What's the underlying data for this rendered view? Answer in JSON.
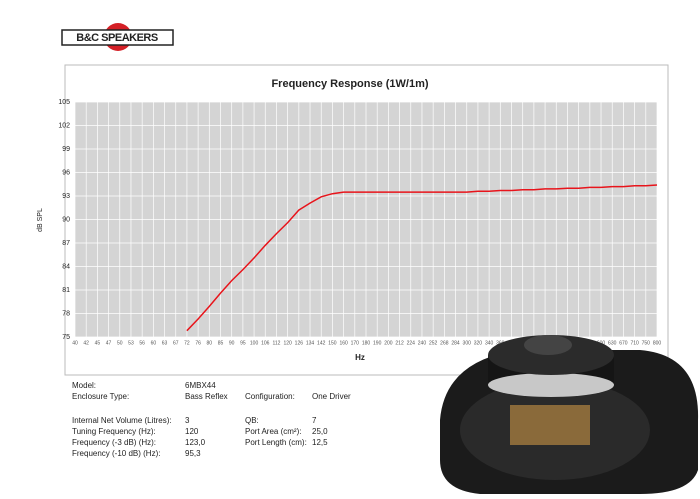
{
  "logo": "B&C SPEAKERS",
  "chart_data": {
    "type": "line",
    "title": "Frequency Response (1W/1m)",
    "x_label": "Hz",
    "y_label": "dB SPL",
    "categories": [
      "40",
      "42",
      "45",
      "47",
      "50",
      "53",
      "56",
      "60",
      "63",
      "67",
      "72",
      "76",
      "80",
      "85",
      "90",
      "95",
      "100",
      "106",
      "112",
      "120",
      "126",
      "134",
      "142",
      "150",
      "160",
      "170",
      "180",
      "190",
      "200",
      "212",
      "224",
      "240",
      "252",
      "268",
      "284",
      "300",
      "320",
      "340",
      "360",
      "380",
      "400",
      "425",
      "450",
      "475",
      "500",
      "530",
      "560",
      "600",
      "630",
      "670",
      "710",
      "750",
      "800"
    ],
    "values": [
      null,
      null,
      null,
      null,
      null,
      null,
      null,
      null,
      null,
      null,
      75.8,
      77.3,
      78.9,
      80.6,
      82.2,
      83.6,
      85.1,
      86.7,
      88.2,
      89.6,
      91.2,
      92.1,
      92.9,
      93.3,
      93.5,
      93.5,
      93.5,
      93.5,
      93.5,
      93.5,
      93.5,
      93.5,
      93.5,
      93.5,
      93.5,
      93.5,
      93.6,
      93.6,
      93.7,
      93.7,
      93.8,
      93.8,
      93.9,
      93.9,
      94.0,
      94.0,
      94.1,
      94.1,
      94.2,
      94.2,
      94.3,
      94.3,
      94.4
    ],
    "color": "#e8141b",
    "ylim": [
      75,
      105
    ],
    "yticks": [
      75,
      78,
      81,
      84,
      87,
      90,
      93,
      96,
      99,
      102,
      105
    ],
    "grid": true
  },
  "specs": {
    "left": [
      {
        "label": "Model:",
        "value": "6MBX44"
      },
      {
        "label": "Enclosure Type:",
        "value": "Bass Reflex"
      },
      {
        "label": "Internal Net Volume (Litres):",
        "value": "3"
      },
      {
        "label": "Tuning Frequency (Hz):",
        "value": "120"
      },
      {
        "label": "Frequency (-3 dB) (Hz):",
        "value": "123,0"
      },
      {
        "label": "Frequency (-10 dB) (Hz):",
        "value": "95,3"
      }
    ],
    "right": [
      {
        "label": "Configuration:",
        "value": "One Driver"
      },
      {
        "label": "QB:",
        "value": "7"
      },
      {
        "label": "Port Area (cm²):",
        "value": "25,0"
      },
      {
        "label": "Port Length (cm):",
        "value": "12,5"
      }
    ]
  }
}
